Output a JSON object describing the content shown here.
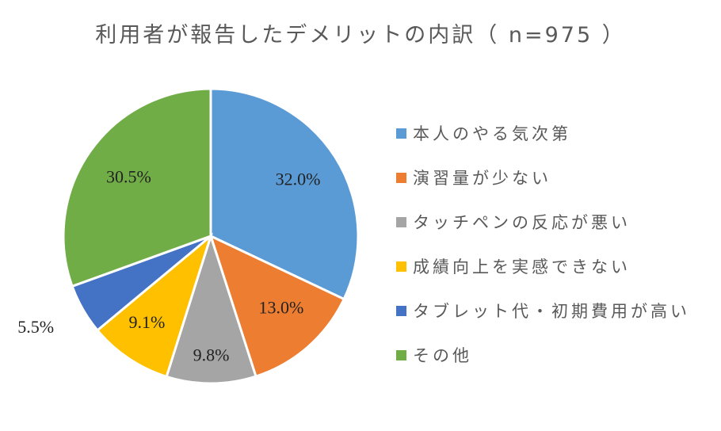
{
  "chart_data": {
    "type": "pie",
    "title": "利用者が報告したデメリットの内訳（ n=975 ）",
    "categories": [
      "本人のやる気次第",
      "演習量が少ない",
      "タッチペンの反応が悪い",
      "成績向上を実感できない",
      "タブレット代・初期費用が高い",
      "その他"
    ],
    "values": [
      32.0,
      13.0,
      9.8,
      9.1,
      5.5,
      30.5
    ],
    "data_labels": [
      "32.0%",
      "13.0%",
      "9.8%",
      "9.1%",
      "5.5%",
      "30.5%"
    ],
    "colors": [
      "#5B9BD5",
      "#ED7D31",
      "#A5A5A5",
      "#FFC000",
      "#4472C4",
      "#70AD47"
    ],
    "legend_position": "right",
    "start_angle": "top, clockwise"
  }
}
